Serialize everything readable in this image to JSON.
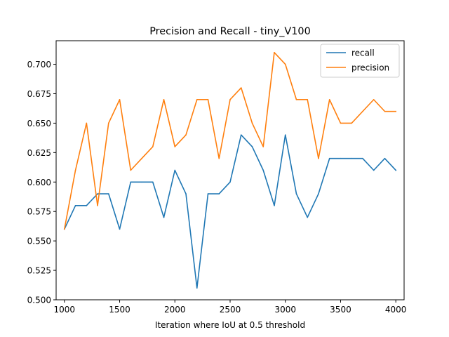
{
  "chart_data": {
    "type": "line",
    "title": "Precision and Recall - tiny_V100",
    "xlabel": "Iteration where IoU at 0.5 threshold",
    "ylabel": "",
    "xlim": [
      925,
      4075
    ],
    "ylim": [
      0.5,
      0.72
    ],
    "grid": false,
    "legend_position": "top-right",
    "xticks": [
      1000,
      1500,
      2000,
      2500,
      3000,
      3500,
      4000
    ],
    "xtick_labels": [
      "1000",
      "1500",
      "2000",
      "2500",
      "3000",
      "3500",
      "4000"
    ],
    "yticks": [
      0.5,
      0.525,
      0.55,
      0.575,
      0.6,
      0.625,
      0.65,
      0.675,
      0.7
    ],
    "ytick_labels": [
      "0.500",
      "0.525",
      "0.550",
      "0.575",
      "0.600",
      "0.625",
      "0.650",
      "0.675",
      "0.700"
    ],
    "x": [
      1000,
      1100,
      1200,
      1300,
      1400,
      1500,
      1600,
      1700,
      1800,
      1900,
      2000,
      2100,
      2200,
      2300,
      2400,
      2500,
      2600,
      2700,
      2800,
      2900,
      3000,
      3100,
      3200,
      3300,
      3400,
      3500,
      3600,
      3700,
      3800,
      3900,
      4000
    ],
    "series": [
      {
        "name": "recall",
        "color": "#1f77b4",
        "values": [
          0.56,
          0.58,
          0.58,
          0.59,
          0.59,
          0.56,
          0.6,
          0.6,
          0.6,
          0.57,
          0.61,
          0.59,
          0.51,
          0.59,
          0.59,
          0.6,
          0.64,
          0.63,
          0.61,
          0.58,
          0.64,
          0.59,
          0.57,
          0.59,
          0.62,
          0.62,
          0.62,
          0.62,
          0.61,
          0.62,
          0.61
        ]
      },
      {
        "name": "precision",
        "color": "#ff7f0e",
        "values": [
          0.56,
          0.61,
          0.65,
          0.58,
          0.65,
          0.67,
          0.61,
          0.62,
          0.63,
          0.67,
          0.63,
          0.64,
          0.67,
          0.67,
          0.62,
          0.67,
          0.68,
          0.65,
          0.63,
          0.71,
          0.7,
          0.67,
          0.67,
          0.62,
          0.67,
          0.65,
          0.65,
          0.66,
          0.67,
          0.66,
          0.66
        ]
      }
    ]
  }
}
